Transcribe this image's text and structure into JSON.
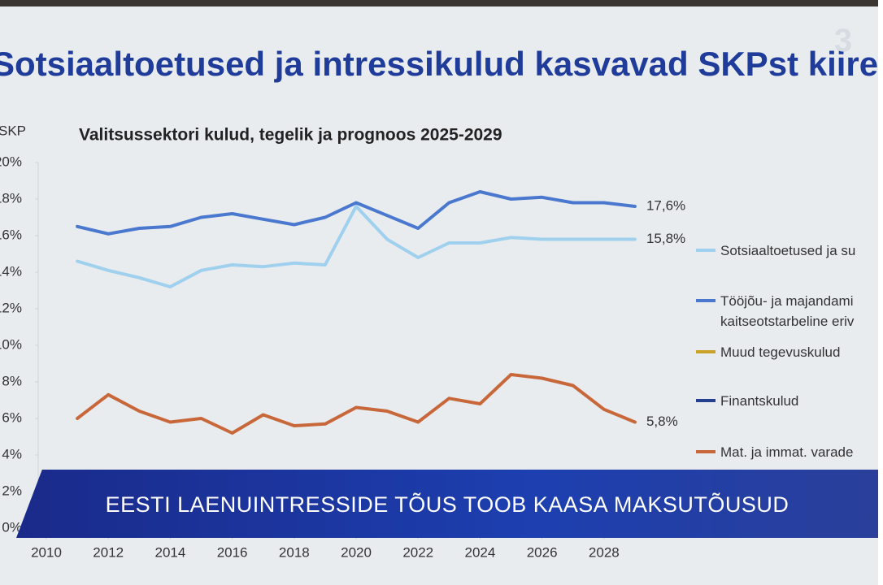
{
  "slide_title": "Sotsiaaltoetused ja intressikulud kasvavad SKPst kiire",
  "logo": "3",
  "banner": "EESTI LAENUINTRESSIDE TÕUS TOOB KAASA MAKSUTÕUSUD",
  "chart_data": {
    "type": "line",
    "title": "Valitsussektori kulud, tegelik ja prognoos 2025-2029",
    "y_label": "SKP",
    "x": [
      2011,
      2012,
      2013,
      2014,
      2015,
      2016,
      2017,
      2018,
      2019,
      2020,
      2021,
      2022,
      2023,
      2024,
      2025,
      2026,
      2027,
      2028,
      2029
    ],
    "xlim": [
      2010,
      2029.5
    ],
    "xticks": [
      2010,
      2012,
      2014,
      2016,
      2018,
      2020,
      2022,
      2024,
      2026,
      2028
    ],
    "ylim": [
      0,
      20
    ],
    "yticks": [
      {
        "value": 0,
        "label": "0%"
      },
      {
        "value": 2,
        "label": "2%"
      },
      {
        "value": 4,
        "label": "4%"
      },
      {
        "value": 6,
        "label": "6%"
      },
      {
        "value": 8,
        "label": "8%"
      },
      {
        "value": 10,
        "label": "10%"
      },
      {
        "value": 12,
        "label": "12%"
      },
      {
        "value": 14,
        "label": "14%"
      },
      {
        "value": 16,
        "label": "16%"
      },
      {
        "value": 18,
        "label": "18%"
      },
      {
        "value": 20,
        "label": "20%"
      }
    ],
    "grid": false,
    "series": [
      {
        "name": "Sotsiaaltoetused ja su",
        "color": "#9fd0ee",
        "values": [
          14.6,
          14.1,
          13.7,
          13.2,
          14.1,
          14.4,
          14.3,
          14.5,
          14.4,
          17.6,
          15.8,
          14.8,
          15.6,
          15.6,
          15.9,
          15.8,
          15.8,
          15.8,
          15.8
        ],
        "value_labels": [
          null,
          null,
          null,
          null,
          null,
          null,
          null,
          null,
          null,
          null,
          null,
          null,
          null,
          null,
          null,
          null,
          null,
          null,
          "15,8%"
        ]
      },
      {
        "name": "Tööjõu- ja majandami kaitseotstarbeline eriv",
        "color": "#4a78cf",
        "values": [
          16.5,
          16.1,
          16.4,
          16.5,
          17.0,
          17.2,
          16.9,
          16.6,
          17.0,
          17.8,
          17.1,
          16.4,
          17.8,
          18.4,
          18.0,
          18.1,
          17.8,
          17.8,
          17.6
        ],
        "value_labels": [
          null,
          null,
          null,
          null,
          null,
          null,
          null,
          null,
          null,
          null,
          null,
          null,
          null,
          null,
          null,
          null,
          null,
          null,
          "17,6%"
        ]
      },
      {
        "name": "Muud tegevuskulud",
        "color": "#c9a227",
        "values": [
          null,
          null,
          null,
          null,
          null,
          null,
          null,
          null,
          null,
          null,
          null,
          null,
          null,
          null,
          null,
          null,
          null,
          null,
          null
        ]
      },
      {
        "name": "Finantskulud",
        "color": "#25408f",
        "values": [
          null,
          null,
          null,
          null,
          null,
          null,
          null,
          null,
          null,
          null,
          null,
          null,
          null,
          null,
          null,
          null,
          null,
          null,
          null
        ]
      },
      {
        "name": "Mat. ja immat. varade",
        "color": "#c8683a",
        "values": [
          6.0,
          7.3,
          6.4,
          5.8,
          6.0,
          5.2,
          6.2,
          5.6,
          5.7,
          6.6,
          6.4,
          5.8,
          7.1,
          6.8,
          8.4,
          8.2,
          7.8,
          6.5,
          5.8
        ],
        "value_labels": [
          null,
          null,
          null,
          null,
          null,
          null,
          null,
          null,
          null,
          null,
          null,
          null,
          null,
          null,
          null,
          null,
          null,
          null,
          "5,8%"
        ]
      }
    ]
  }
}
